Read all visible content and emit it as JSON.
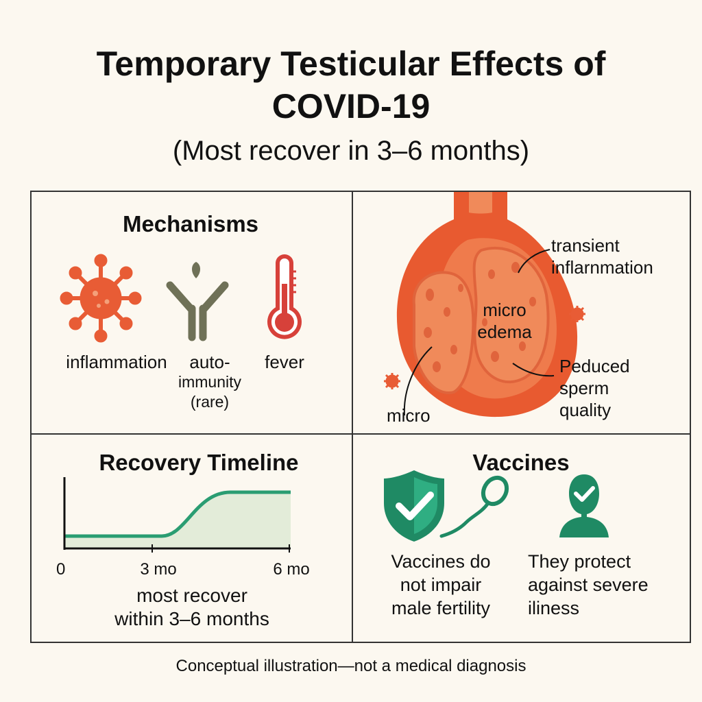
{
  "header": {
    "title": "Temporary Testicular Effects of COVID-19",
    "subtitle": "(Most recover in 3–6 months)"
  },
  "mechanisms": {
    "title": "Mechanisms",
    "items": [
      {
        "label": "inflammation",
        "icon": "virus-icon",
        "color": "#e85c35"
      },
      {
        "label_lines": [
          "auto-",
          "immunity",
          "(rare)"
        ],
        "icon": "antibody-icon",
        "color": "#707155"
      },
      {
        "label": "fever",
        "icon": "thermometer-icon",
        "color": "#d7413a"
      }
    ]
  },
  "anatomy": {
    "labels": {
      "transient": [
        "transient",
        "inflarnmation"
      ],
      "edema": [
        "micro",
        "edema"
      ],
      "sperm": [
        "Peduced",
        "sperm",
        "quality"
      ],
      "micro": "micro"
    },
    "colors": {
      "outer": "#e85a30",
      "inner": "#f08a5a",
      "dark": "#e0643c"
    }
  },
  "timeline": {
    "title": "Recovery Timeline",
    "ticks": [
      "0",
      "3 mo",
      "6 mo"
    ],
    "caption": [
      "most recover",
      "within 3–6 months"
    ],
    "color": "#2a9d72",
    "fill": "#e3ecd9"
  },
  "vaccines": {
    "title": "Vaccines",
    "left_text": [
      "Vaccines do",
      "not impair",
      "male fertility"
    ],
    "right_text": [
      "They protect",
      "against severe",
      "iliness"
    ],
    "color": "#1f8a64"
  },
  "footer": "Conceptual illustration—not a medical diagnosis"
}
